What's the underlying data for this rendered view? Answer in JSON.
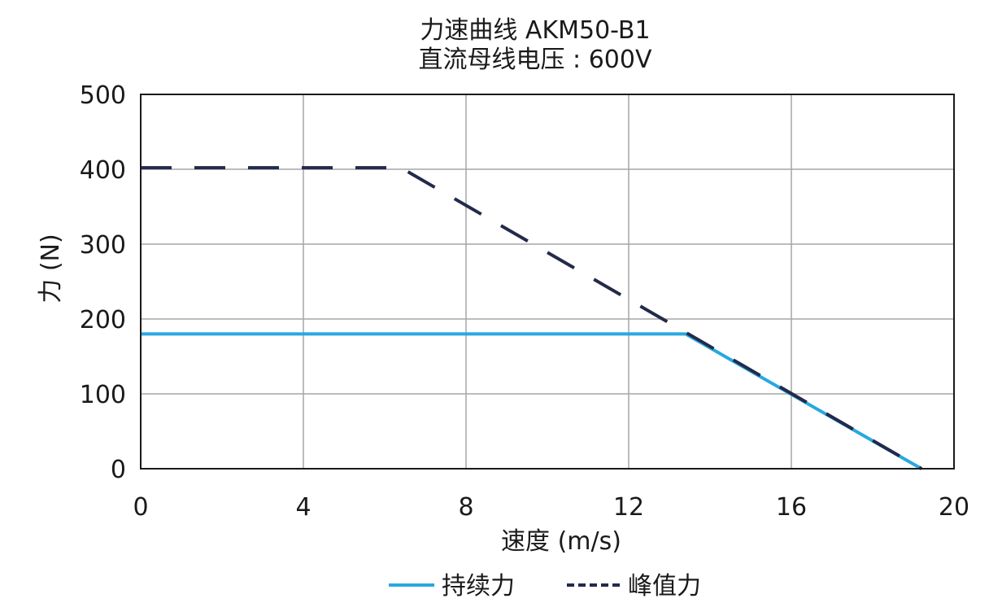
{
  "chart_data": {
    "type": "line",
    "title": "力速曲线 AKM50-B1",
    "subtitle": "直流母线电压 : 600V",
    "xlabel": "速度 (m/s)",
    "ylabel": "力 (N)",
    "xlim": [
      0,
      20
    ],
    "ylim": [
      0,
      500
    ],
    "x_ticks": [
      "0",
      "4",
      "8",
      "12",
      "16",
      "20"
    ],
    "y_ticks": [
      "0",
      "100",
      "200",
      "300",
      "400",
      "500"
    ],
    "grid": true,
    "legend_position": "bottom-center",
    "series": [
      {
        "name": "持续力",
        "style": "solid",
        "color": "#29a8e0",
        "points": [
          [
            0,
            180
          ],
          [
            13.4,
            180
          ],
          [
            19.2,
            0
          ]
        ]
      },
      {
        "name": "峰值力",
        "style": "dashed",
        "color": "#232a4a",
        "points": [
          [
            0,
            402
          ],
          [
            6.4,
            402
          ],
          [
            19.2,
            0
          ]
        ]
      }
    ]
  }
}
